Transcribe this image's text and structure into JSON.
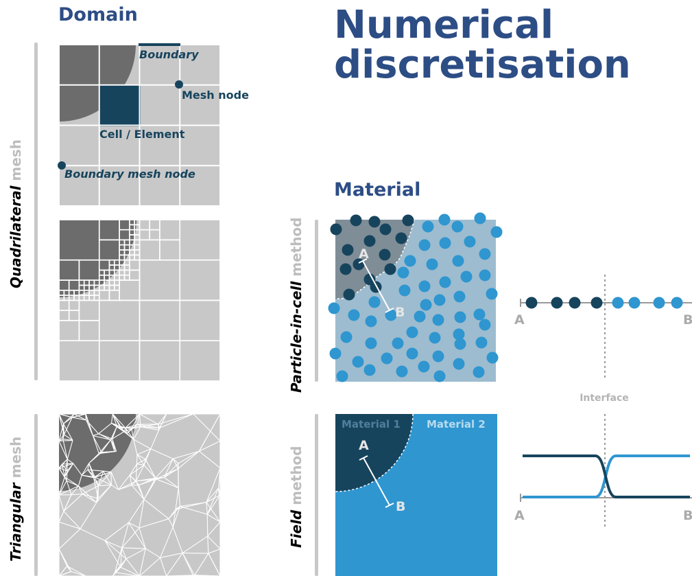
{
  "headings": {
    "title_line1": "Numerical",
    "title_line2": "discretisation",
    "domain": "Domain",
    "material": "Material"
  },
  "mesh_labels": {
    "quadrilateral": "Quadrilateral",
    "triangular": "Triangular",
    "mesh": " mesh"
  },
  "method_labels": {
    "pic_bold": "Particle-in-cell",
    "field_bold": "Field",
    "method": " method"
  },
  "annotations": {
    "boundary": "Boundary",
    "mesh_node": "Mesh node",
    "cell_element": "Cell / Element",
    "boundary_mesh_node": "Boundary mesh node",
    "material_1": "Material 1",
    "material_2": "Material 2",
    "interface": "Interface",
    "point_a": "A",
    "point_b": "B"
  },
  "colors": {
    "title_blue": "#2d4d85",
    "dark_navy": "#17445d",
    "light_blue": "#2f96d0",
    "pale_blue": "#9dbccf",
    "slate": "#7f8d97",
    "mesh_gray": "#c8c8c8",
    "dark_gray": "#6c6c6c",
    "divider_gray": "#c8c8c8",
    "axis_gray": "#999999"
  },
  "profiles": {
    "pic_dots": [
      "dark",
      "dark",
      "dark",
      "dark",
      "light",
      "light",
      "light",
      "light"
    ]
  }
}
